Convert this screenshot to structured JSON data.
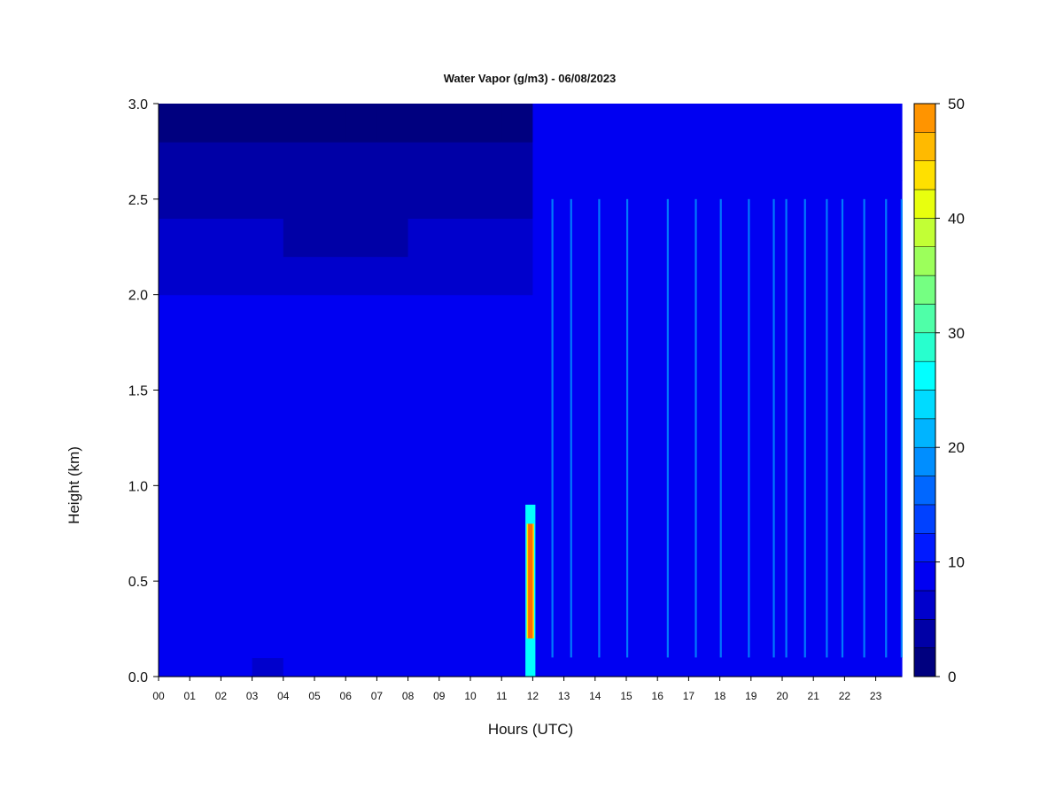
{
  "chart_data": {
    "type": "heatmap",
    "title": "Water Vapor (g/m3) - 06/08/2023",
    "xlabel": "Hours (UTC)",
    "ylabel": "Height (km)",
    "x_unit": "hours UTC",
    "xlim": [
      0,
      24
    ],
    "ylim": [
      0.0,
      3.0
    ],
    "x_ticks": [
      "00",
      "01",
      "02",
      "03",
      "04",
      "05",
      "06",
      "07",
      "08",
      "09",
      "10",
      "11",
      "12",
      "13",
      "14",
      "15",
      "16",
      "17",
      "18",
      "19",
      "20",
      "21",
      "22",
      "23"
    ],
    "y_ticks": [
      "0.0",
      "0.5",
      "1.0",
      "1.5",
      "2.0",
      "2.5",
      "3.0"
    ],
    "colorbar": {
      "label": "",
      "range": [
        0,
        50
      ],
      "level_step": 2.5,
      "ticks": [
        "0",
        "10",
        "20",
        "30",
        "40",
        "50"
      ],
      "colors": [
        "#00007f",
        "#0000a6",
        "#0000cc",
        "#0000f2",
        "#001aff",
        "#0041ff",
        "#0067ff",
        "#008eff",
        "#00b4ff",
        "#00dbff",
        "#02ffff",
        "#28ffce",
        "#4fffa8",
        "#75ff82",
        "#9cff5b",
        "#c2ff35",
        "#e8ff0e",
        "#ffe000",
        "#ffba00",
        "#ff9400",
        "#ff6d00",
        "#ff4700",
        "#ff2100",
        "#f20000",
        "#a60000"
      ]
    },
    "height_levels_km": [
      0.0,
      0.1,
      0.2,
      0.3,
      0.4,
      0.5,
      0.6,
      0.7,
      0.8,
      0.9,
      1.0,
      1.2,
      1.4,
      1.6,
      1.8,
      2.0,
      2.2,
      2.4,
      2.6,
      2.8,
      3.0
    ],
    "series": [
      {
        "hour": 0,
        "values": [
          8,
          8,
          8,
          8,
          7.5,
          7.5,
          7.5,
          8.5,
          9,
          9,
          9,
          9,
          9,
          7.5,
          7.5,
          6,
          6,
          4,
          4,
          2,
          2
        ]
      },
      {
        "hour": 1,
        "values": [
          8,
          8,
          8,
          8,
          7.5,
          7.5,
          7.5,
          8.5,
          9,
          9,
          9,
          9,
          9,
          7.5,
          7.5,
          6,
          6,
          4,
          4,
          2,
          2
        ]
      },
      {
        "hour": 2,
        "values": [
          8,
          7.5,
          7.5,
          7.5,
          7.5,
          7.5,
          7.5,
          8.5,
          9,
          9,
          9,
          9,
          8.5,
          7.5,
          7.5,
          6,
          6,
          4,
          4,
          2,
          2
        ]
      },
      {
        "hour": 3,
        "values": [
          6,
          7.5,
          7.5,
          7.5,
          7.5,
          7.5,
          7.5,
          8,
          9,
          9,
          9,
          9,
          8.5,
          7.5,
          7.5,
          6,
          6,
          4,
          4,
          2,
          2
        ]
      },
      {
        "hour": 4,
        "values": [
          8,
          7.5,
          7.5,
          7.5,
          7.5,
          7.5,
          7.5,
          8,
          8.5,
          9,
          9,
          9,
          8.5,
          7.5,
          7.5,
          6,
          4,
          4,
          4,
          2,
          2
        ]
      },
      {
        "hour": 5,
        "values": [
          8,
          7.5,
          7.5,
          7.5,
          7.5,
          7.5,
          7.5,
          8,
          8.5,
          9,
          9,
          9,
          8.5,
          7.5,
          7.5,
          6,
          4,
          4,
          4,
          2,
          2
        ]
      },
      {
        "hour": 6,
        "values": [
          8,
          7.5,
          8.5,
          8.5,
          7.5,
          7.5,
          7.5,
          8,
          8.5,
          9,
          9,
          9,
          8.5,
          7.5,
          7.5,
          6,
          4,
          4,
          4,
          2,
          2
        ]
      },
      {
        "hour": 7,
        "values": [
          8,
          8.5,
          9,
          9,
          8.5,
          7.5,
          7.5,
          8,
          8.5,
          9,
          9,
          9,
          8.5,
          7.5,
          7.5,
          6,
          4,
          4,
          4,
          2,
          2
        ]
      },
      {
        "hour": 8,
        "values": [
          8,
          8.5,
          8.5,
          8.5,
          8,
          7.5,
          7.5,
          8,
          8.5,
          9,
          9,
          9,
          8.5,
          7.5,
          7.5,
          6,
          6,
          4,
          4,
          2,
          2
        ]
      },
      {
        "hour": 9,
        "values": [
          8,
          8.5,
          8.5,
          8.5,
          8,
          7.5,
          7.5,
          8,
          8.5,
          9,
          9,
          9,
          8.5,
          7.5,
          7.5,
          6,
          6,
          4,
          4,
          2,
          2
        ]
      },
      {
        "hour": 10,
        "values": [
          8,
          8.5,
          8.5,
          8.5,
          8,
          7.5,
          7.5,
          8,
          8.5,
          9,
          9,
          9,
          8.5,
          7.5,
          7.5,
          6,
          6,
          4,
          4,
          2,
          2
        ]
      },
      {
        "hour": 11,
        "values": [
          8,
          8.5,
          8.5,
          8.5,
          8,
          7.5,
          7.5,
          8,
          8.5,
          9,
          9,
          9,
          8.5,
          7.5,
          7.5,
          6,
          6,
          4,
          4,
          2,
          2
        ]
      },
      {
        "hour": 12,
        "values": [
          7.5,
          7.5,
          7.5,
          7.5,
          8,
          8,
          8,
          8,
          8.5,
          8.5,
          8.5,
          8.5,
          8,
          8,
          8,
          8,
          7.5,
          7.5,
          7.5,
          7.5,
          7.5
        ]
      },
      {
        "hour": 13,
        "values": [
          7.5,
          8,
          8,
          8,
          8,
          8,
          8,
          8,
          8.5,
          8.5,
          8.5,
          8.5,
          8,
          8,
          8,
          8,
          7.5,
          7.5,
          7.5,
          7.5,
          7.5
        ]
      },
      {
        "hour": 14,
        "values": [
          7.5,
          8,
          8,
          8,
          8,
          8,
          8,
          8,
          8.5,
          8.5,
          8.5,
          8.5,
          8,
          8,
          8,
          8,
          7.5,
          7.5,
          7.5,
          7.5,
          7.5
        ]
      },
      {
        "hour": 15,
        "values": [
          7.5,
          8,
          8,
          8,
          8,
          8,
          8,
          8,
          8.5,
          8.5,
          8.5,
          8.5,
          8,
          8,
          8,
          8,
          7.5,
          7.5,
          7.5,
          7.5,
          7.5
        ]
      },
      {
        "hour": 16,
        "values": [
          7.5,
          8,
          8,
          8,
          8,
          8,
          8,
          8,
          8.5,
          8.5,
          8.5,
          8.5,
          8,
          8,
          8,
          8,
          7.5,
          7.5,
          7.5,
          7.5,
          7.5
        ]
      },
      {
        "hour": 17,
        "values": [
          7.5,
          8,
          8,
          8,
          8,
          8,
          8,
          8,
          8.5,
          8.5,
          8.5,
          8.5,
          8,
          8,
          8,
          8,
          7.5,
          7.5,
          7.5,
          7.5,
          7.5
        ]
      },
      {
        "hour": 18,
        "values": [
          7.5,
          8,
          8,
          8,
          8,
          8,
          8,
          8,
          8.5,
          8.5,
          8.5,
          8.5,
          8,
          8,
          8,
          8,
          7.5,
          7.5,
          7.5,
          7.5,
          7.5
        ]
      },
      {
        "hour": 19,
        "values": [
          7.5,
          8,
          8,
          8,
          8,
          8,
          8,
          8,
          8.5,
          8.5,
          8.5,
          8.5,
          8,
          8,
          8,
          8,
          7.5,
          7.5,
          7.5,
          7.5,
          7.5
        ]
      },
      {
        "hour": 20,
        "values": [
          7.5,
          8,
          8,
          8,
          8,
          8,
          8,
          8,
          8.5,
          8.5,
          8.5,
          8.5,
          8,
          8,
          8,
          8,
          7.5,
          7.5,
          7.5,
          7.5,
          7.5
        ]
      },
      {
        "hour": 21,
        "values": [
          7.5,
          8,
          8,
          8,
          8,
          8,
          8,
          8,
          8.5,
          8.5,
          8.5,
          8.5,
          8,
          8,
          8,
          8,
          7.5,
          7.5,
          7.5,
          7.5,
          7.5
        ]
      },
      {
        "hour": 22,
        "values": [
          7.5,
          8,
          8,
          8,
          8,
          8,
          8,
          8,
          8.5,
          8.5,
          8.5,
          8.5,
          8,
          8,
          8,
          8,
          7.5,
          7.5,
          7.5,
          7.5,
          7.5
        ]
      },
      {
        "hour": 23,
        "values": [
          7.5,
          8,
          8,
          8,
          8,
          8,
          8,
          8,
          8.5,
          8.5,
          8.5,
          8.5,
          8,
          8,
          8,
          8,
          7.5,
          7.5,
          7.5,
          7.5,
          7.5
        ]
      }
    ],
    "highlight": {
      "hour_start": 11.85,
      "hour_end": 12.0,
      "height_start_km": 0.2,
      "height_end_km": 0.8,
      "peak_value": 50
    },
    "streaks_hours": [
      12.6,
      13.2,
      14.1,
      15.0,
      16.3,
      17.2,
      18.0,
      18.9,
      19.7,
      20.1,
      20.7,
      21.4,
      21.9,
      22.6,
      23.3,
      23.8
    ],
    "grid": false,
    "legend": "colorbar-right"
  }
}
